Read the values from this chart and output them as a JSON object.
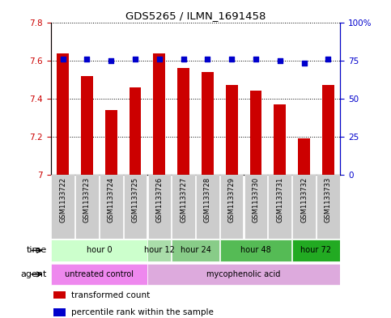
{
  "title": "GDS5265 / ILMN_1691458",
  "samples": [
    "GSM1133722",
    "GSM1133723",
    "GSM1133724",
    "GSM1133725",
    "GSM1133726",
    "GSM1133727",
    "GSM1133728",
    "GSM1133729",
    "GSM1133730",
    "GSM1133731",
    "GSM1133732",
    "GSM1133733"
  ],
  "transformed_count": [
    7.635,
    7.52,
    7.34,
    7.46,
    7.635,
    7.56,
    7.54,
    7.47,
    7.44,
    7.37,
    7.19,
    7.47
  ],
  "percentile_rank": [
    76,
    76,
    75,
    76,
    76,
    76,
    76,
    76,
    76,
    75,
    73,
    76
  ],
  "bar_color": "#cc0000",
  "dot_color": "#0000cc",
  "ylim_left": [
    7.0,
    7.8
  ],
  "ylim_right": [
    0,
    100
  ],
  "yticks_left": [
    7.0,
    7.2,
    7.4,
    7.6,
    7.8
  ],
  "ytick_labels_left": [
    "7",
    "7.2",
    "7.4",
    "7.6",
    "7.8"
  ],
  "yticks_right": [
    0,
    25,
    50,
    75,
    100
  ],
  "ytick_labels_right": [
    "0",
    "25",
    "50",
    "75",
    "100%"
  ],
  "time_groups": [
    {
      "label": "hour 0",
      "start": 0,
      "end": 4,
      "color": "#ccffcc"
    },
    {
      "label": "hour 12",
      "start": 4,
      "end": 5,
      "color": "#aaddaa"
    },
    {
      "label": "hour 24",
      "start": 5,
      "end": 7,
      "color": "#88cc88"
    },
    {
      "label": "hour 48",
      "start": 7,
      "end": 10,
      "color": "#55bb55"
    },
    {
      "label": "hour 72",
      "start": 10,
      "end": 12,
      "color": "#22aa22"
    }
  ],
  "agent_groups": [
    {
      "label": "untreated control",
      "start": 0,
      "end": 4,
      "color": "#ee88ee"
    },
    {
      "label": "mycophenolic acid",
      "start": 4,
      "end": 12,
      "color": "#ddaadd"
    }
  ],
  "legend_bar_label": "transformed count",
  "legend_dot_label": "percentile rank within the sample",
  "background_color": "#ffffff",
  "bar_width": 0.5,
  "base_value": 7.0,
  "sample_box_color": "#cccccc",
  "bar_color_red": "#cc0000",
  "dot_color_blue": "#0000cc"
}
